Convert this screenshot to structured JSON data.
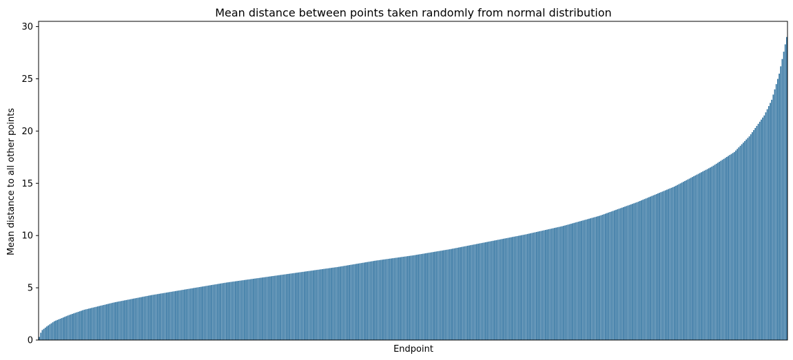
{
  "chart_data": {
    "type": "bar",
    "title": "Mean distance between points taken randomly from normal distribution",
    "xlabel": "Endpoint",
    "ylabel": "Mean distance to all other points",
    "ylim": [
      0,
      30.5
    ],
    "yticks": [
      "0",
      "5",
      "10",
      "15",
      "20",
      "25",
      "30"
    ],
    "grid": false,
    "bar_color": "#3274a1",
    "n_bars": 500,
    "profile": [
      {
        "rank": 0.0,
        "value": 0.3
      },
      {
        "rank": 0.003,
        "value": 0.9
      },
      {
        "rank": 0.01,
        "value": 1.3
      },
      {
        "rank": 0.02,
        "value": 1.8
      },
      {
        "rank": 0.04,
        "value": 2.4
      },
      {
        "rank": 0.06,
        "value": 2.9
      },
      {
        "rank": 0.1,
        "value": 3.6
      },
      {
        "rank": 0.15,
        "value": 4.3
      },
      {
        "rank": 0.2,
        "value": 4.9
      },
      {
        "rank": 0.25,
        "value": 5.5
      },
      {
        "rank": 0.3,
        "value": 6.0
      },
      {
        "rank": 0.35,
        "value": 6.5
      },
      {
        "rank": 0.4,
        "value": 7.0
      },
      {
        "rank": 0.45,
        "value": 7.6
      },
      {
        "rank": 0.5,
        "value": 8.1
      },
      {
        "rank": 0.55,
        "value": 8.7
      },
      {
        "rank": 0.6,
        "value": 9.4
      },
      {
        "rank": 0.65,
        "value": 10.1
      },
      {
        "rank": 0.7,
        "value": 10.9
      },
      {
        "rank": 0.75,
        "value": 11.9
      },
      {
        "rank": 0.8,
        "value": 13.2
      },
      {
        "rank": 0.85,
        "value": 14.7
      },
      {
        "rank": 0.9,
        "value": 16.6
      },
      {
        "rank": 0.93,
        "value": 18.0
      },
      {
        "rank": 0.95,
        "value": 19.5
      },
      {
        "rank": 0.97,
        "value": 21.5
      },
      {
        "rank": 0.98,
        "value": 23.0
      },
      {
        "rank": 0.99,
        "value": 25.5
      },
      {
        "rank": 1.0,
        "value": 29.0
      }
    ]
  }
}
